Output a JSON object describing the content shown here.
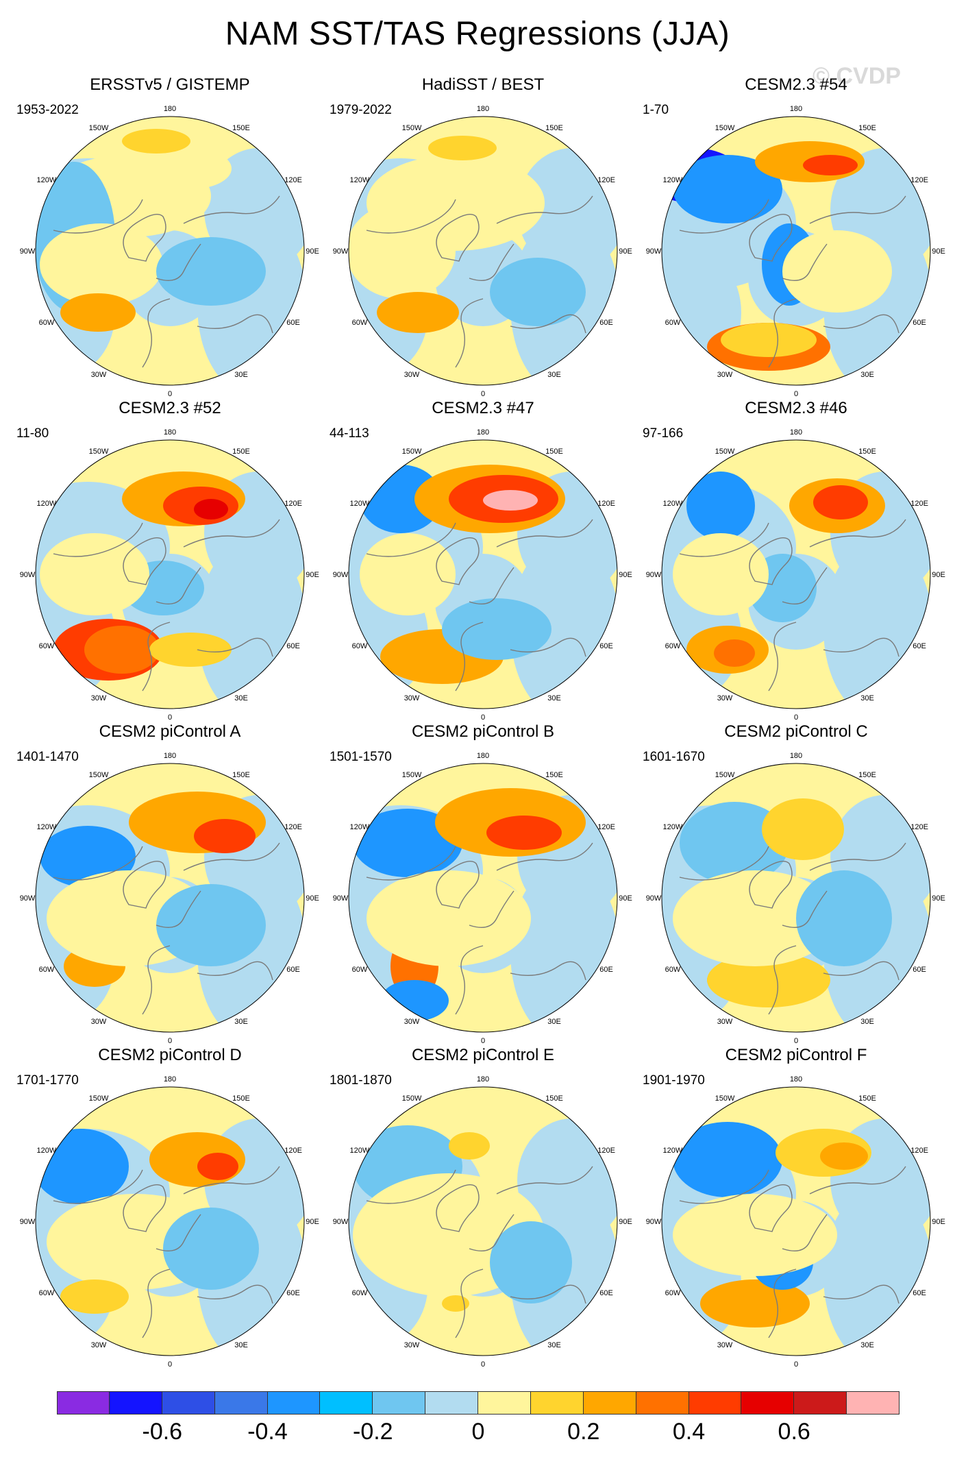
{
  "title": "NAM SST/TAS Regressions (JJA)",
  "watermark": "© CVDP",
  "panels": [
    {
      "name": "ERSSTv5 / GISTEMP",
      "period": "1953-2022"
    },
    {
      "name": "HadiSST / BEST",
      "period": "1979-2022"
    },
    {
      "name": "CESM2.3 #54",
      "period": "1-70"
    },
    {
      "name": "CESM2.3 #52",
      "period": "11-80"
    },
    {
      "name": "CESM2.3 #47",
      "period": "44-113"
    },
    {
      "name": "CESM2.3 #46",
      "period": "97-166"
    },
    {
      "name": "CESM2 piControl A",
      "period": "1401-1470"
    },
    {
      "name": "CESM2 piControl B",
      "period": "1501-1570"
    },
    {
      "name": "CESM2 piControl C",
      "period": "1601-1670"
    },
    {
      "name": "CESM2 piControl D",
      "period": "1701-1770"
    },
    {
      "name": "CESM2 piControl E",
      "period": "1801-1870"
    },
    {
      "name": "CESM2 piControl F",
      "period": "1901-1970"
    }
  ],
  "longitude_labels": [
    "180",
    "150E",
    "120E",
    "90E",
    "60E",
    "30E",
    "0",
    "30W",
    "60W",
    "90W",
    "120W",
    "150W"
  ],
  "colorbar": {
    "colors": [
      "#8a2be2",
      "#1414ff",
      "#2e4fe6",
      "#3a78e8",
      "#1e96ff",
      "#00bfff",
      "#6fc6f0",
      "#b2dcf0",
      "#fff59c",
      "#ffd42e",
      "#ffa700",
      "#ff7100",
      "#ff3c00",
      "#e60000",
      "#cc1a1a",
      "#ffb3b3"
    ],
    "tick_labels": [
      "-0.6",
      "-0.4",
      "-0.2",
      "0",
      "0.2",
      "0.4",
      "0.6"
    ],
    "tick_values": [
      -0.6,
      -0.4,
      -0.2,
      0,
      0.2,
      0.4,
      0.6
    ],
    "min": -0.8,
    "max": 0.8
  },
  "chart_data": {
    "type": "map",
    "projection": "north polar stereographic",
    "title": "NAM SST/TAS Regressions (JJA)",
    "variable": "SST/TAS regression onto NAM",
    "season": "JJA",
    "contour_levels": [
      -0.7,
      -0.6,
      -0.5,
      -0.4,
      -0.3,
      -0.2,
      -0.1,
      0,
      0.1,
      0.2,
      0.3,
      0.4,
      0.5,
      0.6,
      0.7
    ],
    "panels": [
      {
        "name": "ERSSTv5 / GISTEMP",
        "period": "1953-2022"
      },
      {
        "name": "HadiSST / BEST",
        "period": "1979-2022"
      },
      {
        "name": "CESM2.3 #54",
        "period": "1-70"
      },
      {
        "name": "CESM2.3 #52",
        "period": "11-80"
      },
      {
        "name": "CESM2.3 #47",
        "period": "44-113"
      },
      {
        "name": "CESM2.3 #46",
        "period": "97-166"
      },
      {
        "name": "CESM2 piControl A",
        "period": "1401-1470"
      },
      {
        "name": "CESM2 piControl B",
        "period": "1501-1570"
      },
      {
        "name": "CESM2 piControl C",
        "period": "1601-1670"
      },
      {
        "name": "CESM2 piControl D",
        "period": "1701-1770"
      },
      {
        "name": "CESM2 piControl E",
        "period": "1801-1870"
      },
      {
        "name": "CESM2 piControl F",
        "period": "1901-1970"
      }
    ]
  }
}
